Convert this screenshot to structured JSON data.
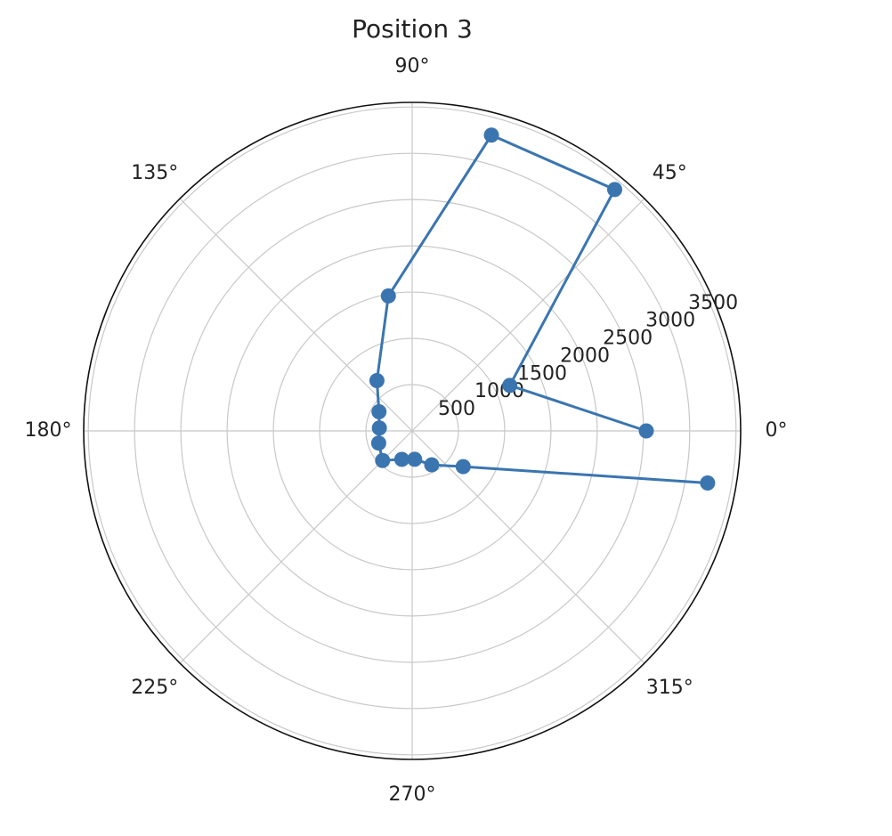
{
  "chart_data": {
    "type": "polar",
    "title": "Position 3",
    "theta": [
      0,
      25,
      50,
      75,
      100,
      125,
      150,
      175,
      200,
      225,
      250,
      275,
      300,
      325,
      350
    ],
    "series": [
      {
        "name": null,
        "color": "#3a75b0",
        "values": [
          2530,
          1164,
          3405,
          3309,
          1481,
          664,
          414,
          356,
          385,
          452,
          327,
          308,
          423,
          673,
          3242
        ]
      }
    ],
    "ylim": [
      0,
      3550
    ],
    "yticks": [
      500,
      1000,
      1500,
      2000,
      2500,
      3000,
      3500
    ],
    "xticks": [
      {
        "value": 0,
        "label": "0°"
      },
      {
        "value": 45,
        "label": "45°"
      },
      {
        "value": 90,
        "label": "90°"
      },
      {
        "value": 135,
        "label": "135°"
      },
      {
        "value": 180,
        "label": "180°"
      },
      {
        "value": 225,
        "label": "225°"
      },
      {
        "value": 270,
        "label": "270°"
      },
      {
        "value": 315,
        "label": "315°"
      }
    ],
    "grid": true
  }
}
